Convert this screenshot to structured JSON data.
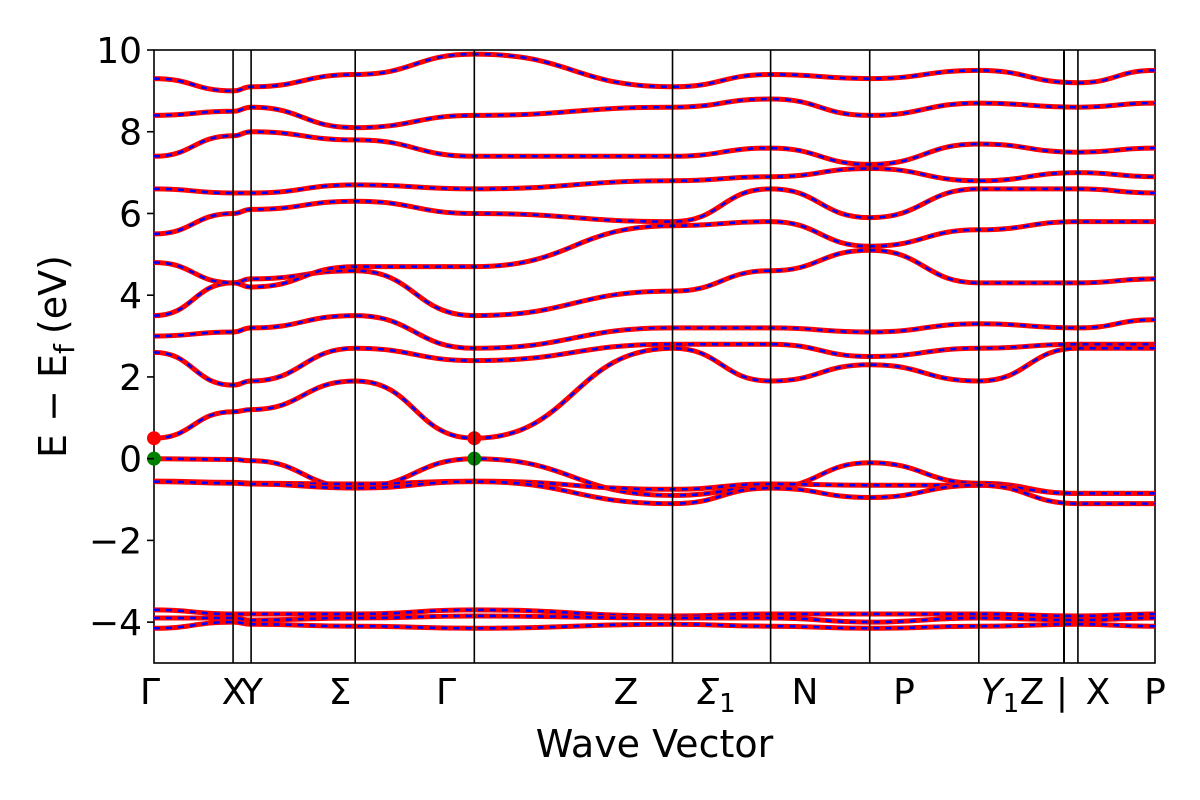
{
  "chart_data": {
    "type": "line",
    "title": "",
    "xlabel": "Wave Vector",
    "ylabel": "E − E",
    "ylabel_sub": "f",
    "ylabel_unit": "(eV)",
    "ylim": [
      -5,
      10
    ],
    "y_ticks": [
      {
        "value": -4,
        "label": "−4"
      },
      {
        "value": -2,
        "label": "−2"
      },
      {
        "value": 0,
        "label": "0"
      },
      {
        "value": 2,
        "label": "2"
      },
      {
        "value": 4,
        "label": "4"
      },
      {
        "value": 6,
        "label": "6"
      },
      {
        "value": 8,
        "label": "8"
      },
      {
        "value": 10,
        "label": "10"
      }
    ],
    "xlim": [
      0,
      1
    ],
    "kpoints": [
      {
        "pos": 0.0,
        "label": "Γ",
        "sub": ""
      },
      {
        "pos": 0.079,
        "label": "X",
        "sub": ""
      },
      {
        "pos": 0.097,
        "label": "Y",
        "sub": ""
      },
      {
        "pos": 0.201,
        "label": "Σ",
        "sub": ""
      },
      {
        "pos": 0.32,
        "label": "Γ",
        "sub": ""
      },
      {
        "pos": 0.518,
        "label": "Z",
        "sub": ""
      },
      {
        "pos": 0.616,
        "label": "Σ",
        "sub": "1"
      },
      {
        "pos": 0.715,
        "label": "N",
        "sub": ""
      },
      {
        "pos": 0.824,
        "label": "P",
        "sub": ""
      },
      {
        "pos": 0.923,
        "label": "Y",
        "sub": "1"
      },
      {
        "pos": 0.96,
        "label": "Z",
        "sub": ""
      },
      {
        "pos": 0.98,
        "label": "|",
        "sub": ""
      },
      {
        "pos": 1.003,
        "label": "X",
        "sub": ""
      },
      {
        "pos": 1.0,
        "label": "P",
        "sub": ""
      }
    ],
    "break_pos": 1.0,
    "band_colors": {
      "primary": "#ff0000",
      "secondary": "#0000ff"
    },
    "valence_bands": [
      {
        "x": [
          0,
          0.079,
          0.097,
          0.201,
          0.32,
          0.518,
          0.616,
          0.715,
          0.824,
          0.923,
          1.0
        ],
        "y": [
          0.0,
          -0.02,
          -0.05,
          -0.7,
          0.0,
          -0.9,
          -0.7,
          -0.1,
          -0.6,
          -0.85,
          -0.85
        ]
      },
      {
        "x": [
          0,
          0.079,
          0.097,
          0.201,
          0.32,
          0.518,
          0.616,
          0.715,
          0.824,
          0.923,
          1.0
        ],
        "y": [
          -0.55,
          -0.58,
          -0.6,
          -0.62,
          -0.55,
          -0.75,
          -0.62,
          -0.65,
          -0.65,
          -0.85,
          -0.85
        ]
      },
      {
        "x": [
          0,
          0.079,
          0.097,
          0.201,
          0.32,
          0.518,
          0.616,
          0.715,
          0.824,
          0.923,
          1.0
        ],
        "y": [
          -0.56,
          -0.6,
          -0.62,
          -0.72,
          -0.56,
          -1.1,
          -0.72,
          -0.95,
          -0.65,
          -1.1,
          -1.1
        ]
      }
    ],
    "conduction_bands": [
      {
        "x": [
          0,
          0.079,
          0.097,
          0.201,
          0.32,
          0.518,
          0.616,
          0.715,
          0.824,
          0.923,
          1.0
        ],
        "y": [
          0.5,
          1.15,
          1.2,
          1.9,
          0.5,
          2.7,
          1.9,
          2.3,
          1.9,
          2.7,
          2.7
        ]
      },
      {
        "x": [
          0,
          0.079,
          0.097,
          0.201,
          0.32,
          0.518,
          0.616,
          0.715,
          0.824,
          0.923,
          1.0
        ],
        "y": [
          2.6,
          1.8,
          1.9,
          2.7,
          2.4,
          2.8,
          2.8,
          2.5,
          2.7,
          2.8,
          2.8
        ]
      },
      {
        "x": [
          0,
          0.079,
          0.097,
          0.201,
          0.32,
          0.518,
          0.616,
          0.715,
          0.824,
          0.923,
          1.0
        ],
        "y": [
          3.0,
          3.1,
          3.2,
          3.5,
          2.7,
          3.2,
          3.2,
          3.1,
          3.3,
          3.2,
          3.4
        ]
      },
      {
        "x": [
          0,
          0.079,
          0.097,
          0.201,
          0.32,
          0.518,
          0.616,
          0.715,
          0.824,
          0.923,
          1.0
        ],
        "y": [
          3.5,
          4.3,
          4.4,
          4.6,
          3.5,
          4.1,
          4.6,
          5.1,
          4.3,
          4.3,
          4.4
        ]
      },
      {
        "x": [
          0,
          0.079,
          0.097,
          0.201,
          0.32,
          0.518,
          0.616,
          0.715,
          0.824,
          0.923,
          1.0
        ],
        "y": [
          4.8,
          4.3,
          4.2,
          4.7,
          4.7,
          5.7,
          5.8,
          5.2,
          5.6,
          5.8,
          5.8
        ]
      },
      {
        "x": [
          0,
          0.079,
          0.097,
          0.201,
          0.32,
          0.518,
          0.616,
          0.715,
          0.824,
          0.923,
          1.0
        ],
        "y": [
          5.5,
          6.0,
          6.1,
          6.3,
          6.0,
          5.8,
          6.6,
          5.9,
          6.6,
          6.6,
          6.5
        ]
      },
      {
        "x": [
          0,
          0.079,
          0.097,
          0.201,
          0.32,
          0.518,
          0.616,
          0.715,
          0.824,
          0.923,
          1.0
        ],
        "y": [
          6.6,
          6.5,
          6.5,
          6.7,
          6.6,
          6.8,
          6.9,
          7.1,
          6.8,
          7.0,
          6.9
        ]
      },
      {
        "x": [
          0,
          0.079,
          0.097,
          0.201,
          0.32,
          0.518,
          0.616,
          0.715,
          0.824,
          0.923,
          1.0
        ],
        "y": [
          7.4,
          7.9,
          8.0,
          7.8,
          7.4,
          7.4,
          7.6,
          7.2,
          7.7,
          7.5,
          7.6
        ]
      },
      {
        "x": [
          0,
          0.079,
          0.097,
          0.201,
          0.32,
          0.518,
          0.616,
          0.715,
          0.824,
          0.923,
          1.0
        ],
        "y": [
          8.4,
          8.5,
          8.6,
          8.1,
          8.4,
          8.6,
          8.8,
          8.4,
          8.7,
          8.6,
          8.7
        ]
      },
      {
        "x": [
          0,
          0.079,
          0.097,
          0.201,
          0.32,
          0.518,
          0.616,
          0.715,
          0.824,
          0.923,
          1.0
        ],
        "y": [
          9.3,
          9.0,
          9.1,
          9.4,
          9.9,
          9.1,
          9.4,
          9.3,
          9.5,
          9.2,
          9.5
        ]
      }
    ],
    "deep_bands": [
      {
        "x": [
          0,
          0.079,
          0.097,
          0.201,
          0.32,
          0.518,
          0.616,
          0.715,
          0.824,
          0.923,
          1.0
        ],
        "y": [
          -3.7,
          -3.8,
          -3.8,
          -3.8,
          -3.7,
          -3.85,
          -3.8,
          -3.8,
          -3.8,
          -3.85,
          -3.8
        ]
      },
      {
        "x": [
          0,
          0.079,
          0.097,
          0.201,
          0.32,
          0.518,
          0.616,
          0.715,
          0.824,
          0.923,
          1.0
        ],
        "y": [
          -3.9,
          -3.9,
          -3.95,
          -3.9,
          -3.85,
          -3.9,
          -3.9,
          -4.0,
          -3.9,
          -3.95,
          -3.9
        ]
      },
      {
        "x": [
          0,
          0.079,
          0.097,
          0.201,
          0.32,
          0.518,
          0.616,
          0.715,
          0.824,
          0.923,
          1.0
        ],
        "y": [
          -4.15,
          -4.0,
          -4.05,
          -4.1,
          -4.15,
          -4.05,
          -4.1,
          -4.15,
          -4.1,
          -4.05,
          -4.1
        ]
      }
    ],
    "markers": [
      {
        "x": 0.0,
        "y": 0.5,
        "color": "#ff0000",
        "name": "cbm-gamma-start"
      },
      {
        "x": 0.0,
        "y": 0.0,
        "color": "#008000",
        "name": "vbm-gamma-start"
      },
      {
        "x": 0.32,
        "y": 0.5,
        "color": "#ff0000",
        "name": "cbm-gamma-mid"
      },
      {
        "x": 0.32,
        "y": 0.0,
        "color": "#008000",
        "name": "vbm-gamma-mid"
      }
    ]
  }
}
